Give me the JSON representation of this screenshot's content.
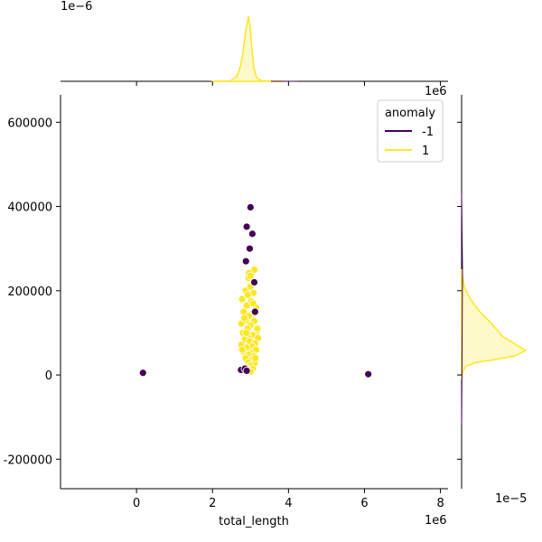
{
  "chart_data": {
    "type": "scatter",
    "subtype": "jointplot with marginal KDE",
    "xlabel": "total_length",
    "ylabel": "",
    "xlim": [
      -2000000,
      8200000
    ],
    "ylim": [
      -270000,
      665000
    ],
    "x_offset_label": "1e6",
    "x_ticks": [
      0,
      2000000,
      4000000,
      6000000,
      8000000
    ],
    "x_tick_labels": [
      "0",
      "2",
      "4",
      "6",
      "8"
    ],
    "y_ticks": [
      -200000,
      0,
      200000,
      400000,
      600000
    ],
    "y_tick_labels": [
      "-200000",
      "0",
      "200000",
      "400000",
      "600000"
    ],
    "legend": {
      "title": "anomaly",
      "placement": "top-right",
      "entries": [
        {
          "label": "-1",
          "color": "#440154"
        },
        {
          "label": "1",
          "color": "#fde725"
        }
      ]
    },
    "series": [
      {
        "name": "-1",
        "color": "#440154",
        "points": [
          [
            170000,
            5000
          ],
          [
            6100000,
            2000
          ],
          [
            3000000,
            398000
          ],
          [
            2900000,
            352000
          ],
          [
            3050000,
            335000
          ],
          [
            2980000,
            300000
          ],
          [
            2880000,
            270000
          ],
          [
            3100000,
            220000
          ],
          [
            3120000,
            150000
          ],
          [
            2750000,
            12000
          ],
          [
            2850000,
            15000
          ],
          [
            2900000,
            10000
          ]
        ]
      },
      {
        "name": "1",
        "color": "#fde725",
        "points": [
          [
            3100000,
            250000
          ],
          [
            2960000,
            242000
          ],
          [
            2950000,
            230000
          ],
          [
            2870000,
            200000
          ],
          [
            3000000,
            210000
          ],
          [
            3080000,
            195000
          ],
          [
            2780000,
            180000
          ],
          [
            3020000,
            175000
          ],
          [
            2900000,
            165000
          ],
          [
            3150000,
            160000
          ],
          [
            2820000,
            150000
          ],
          [
            3050000,
            145000
          ],
          [
            2960000,
            140000
          ],
          [
            2880000,
            130000
          ],
          [
            3100000,
            128000
          ],
          [
            2760000,
            122000
          ],
          [
            3000000,
            118000
          ],
          [
            2920000,
            110000
          ],
          [
            3170000,
            105000
          ],
          [
            2800000,
            100000
          ],
          [
            3060000,
            95000
          ],
          [
            2940000,
            90000
          ],
          [
            3200000,
            88000
          ],
          [
            2850000,
            85000
          ],
          [
            2980000,
            80000
          ],
          [
            3120000,
            75000
          ],
          [
            2760000,
            72000
          ],
          [
            3040000,
            68000
          ],
          [
            2900000,
            65000
          ],
          [
            3150000,
            60000
          ],
          [
            2820000,
            55000
          ],
          [
            3010000,
            52000
          ],
          [
            2960000,
            48000
          ],
          [
            3090000,
            45000
          ],
          [
            2870000,
            40000
          ],
          [
            3030000,
            35000
          ],
          [
            2940000,
            30000
          ],
          [
            3110000,
            28000
          ],
          [
            2990000,
            22000
          ],
          [
            2880000,
            18000
          ],
          [
            3060000,
            15000
          ],
          [
            2920000,
            12000
          ],
          [
            3000000,
            8000
          ],
          [
            2780000,
            60000
          ],
          [
            3180000,
            110000
          ],
          [
            2840000,
            135000
          ],
          [
            3070000,
            170000
          ],
          [
            2930000,
            190000
          ],
          [
            3000000,
            235000
          ],
          [
            2890000,
            100000
          ],
          [
            3130000,
            40000
          ]
        ]
      }
    ],
    "marginal_x_offset_label": "1e−6",
    "marginal_y_offset_label": "1e−5"
  }
}
